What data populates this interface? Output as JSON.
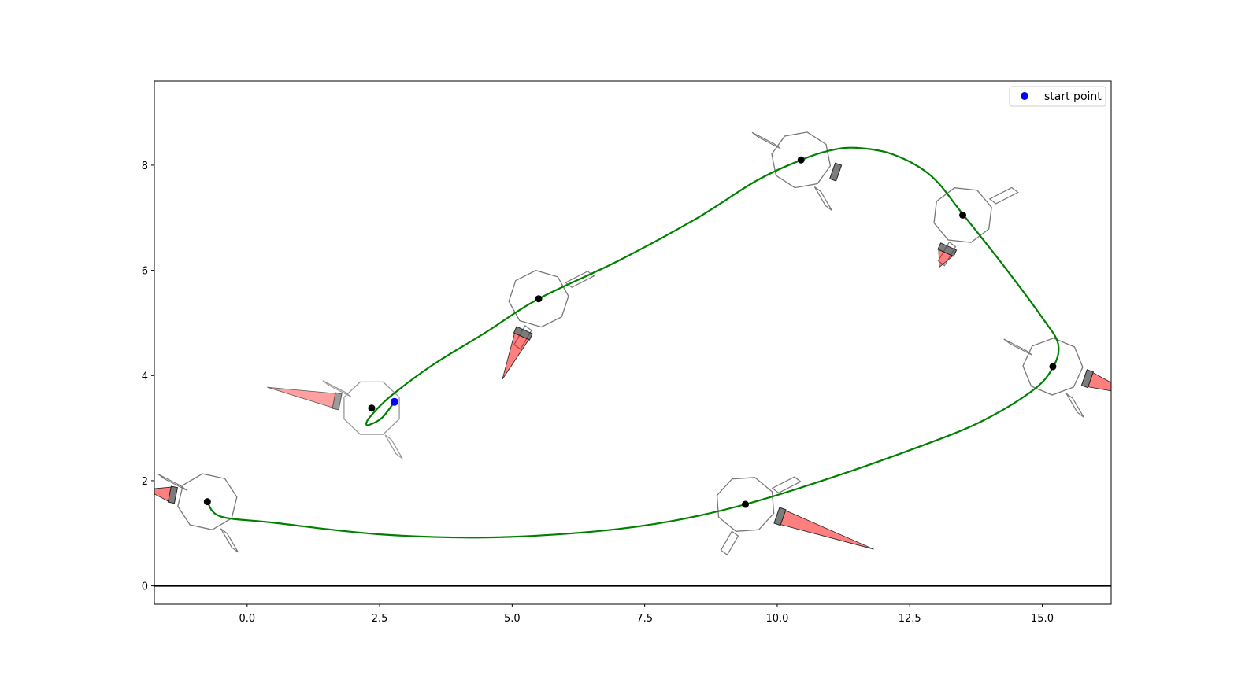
{
  "chart_data": {
    "type": "scatter",
    "title": "",
    "xlabel": "",
    "ylabel": "",
    "xlim": [
      -1.75,
      16.3
    ],
    "ylim": [
      -0.35,
      9.6
    ],
    "xticks": [
      0.0,
      2.5,
      5.0,
      7.5,
      10.0,
      12.5,
      15.0
    ],
    "xtick_labels": [
      "0.0",
      "2.5",
      "5.0",
      "7.5",
      "10.0",
      "12.5",
      "15.0"
    ],
    "yticks": [
      0,
      2,
      4,
      6,
      8
    ],
    "ytick_labels": [
      "0",
      "2",
      "4",
      "6",
      "8"
    ],
    "grid": false,
    "legend": {
      "placement": "top-right",
      "entries": [
        {
          "label": "start point",
          "color": "#0000ff",
          "marker": "circle"
        }
      ]
    },
    "colors": {
      "trajectory": "#008000",
      "keyframe": "#000000",
      "start": "#0000ff",
      "ground": "#000000",
      "beak": "#ff0000",
      "outline": "#000000"
    },
    "ground_line_y": 0,
    "start_point": {
      "x": 2.78,
      "y": 3.5
    },
    "trajectory": [
      [
        2.78,
        3.5
      ],
      [
        2.55,
        3.2
      ],
      [
        2.3,
        3.06
      ],
      [
        2.25,
        3.1
      ],
      [
        2.35,
        3.25
      ],
      [
        2.7,
        3.6
      ],
      [
        3.5,
        4.2
      ],
      [
        4.5,
        4.82
      ],
      [
        5.5,
        5.46
      ],
      [
        7.0,
        6.18
      ],
      [
        8.5,
        7.0
      ],
      [
        9.6,
        7.7
      ],
      [
        10.45,
        8.1
      ],
      [
        11.0,
        8.28
      ],
      [
        11.5,
        8.33
      ],
      [
        12.2,
        8.2
      ],
      [
        12.9,
        7.8
      ],
      [
        13.5,
        7.07
      ],
      [
        14.3,
        6.05
      ],
      [
        15.0,
        5.1
      ],
      [
        15.3,
        4.6
      ],
      [
        15.2,
        4.15
      ],
      [
        14.8,
        3.7
      ],
      [
        13.8,
        3.1
      ],
      [
        12.5,
        2.58
      ],
      [
        11.0,
        2.05
      ],
      [
        9.4,
        1.55
      ],
      [
        8.0,
        1.23
      ],
      [
        6.5,
        1.03
      ],
      [
        4.5,
        0.92
      ],
      [
        2.5,
        0.98
      ],
      [
        0.5,
        1.2
      ],
      [
        -0.5,
        1.32
      ],
      [
        -0.75,
        1.6
      ]
    ],
    "keyframes": [
      {
        "x": 2.35,
        "y": 3.38,
        "beak_dir": "left",
        "beak_len": 1.4,
        "faded": true
      },
      {
        "x": 5.5,
        "y": 5.46,
        "beak_dir": "down-left",
        "beak_len": 0.9,
        "faded": false
      },
      {
        "x": 10.45,
        "y": 8.1,
        "beak_dir": "right",
        "beak_len": 0.0,
        "faded": false
      },
      {
        "x": 13.5,
        "y": 7.05,
        "beak_dir": "down-left",
        "beak_len": 0.3,
        "faded": false
      },
      {
        "x": 15.2,
        "y": 4.17,
        "beak_dir": "right",
        "beak_len": 0.9,
        "faded": false
      },
      {
        "x": 9.4,
        "y": 1.55,
        "beak_dir": "right",
        "beak_len": 1.9,
        "faded": false
      },
      {
        "x": -0.75,
        "y": 1.6,
        "beak_dir": "left",
        "beak_len": 0.5,
        "faded": false
      }
    ]
  }
}
